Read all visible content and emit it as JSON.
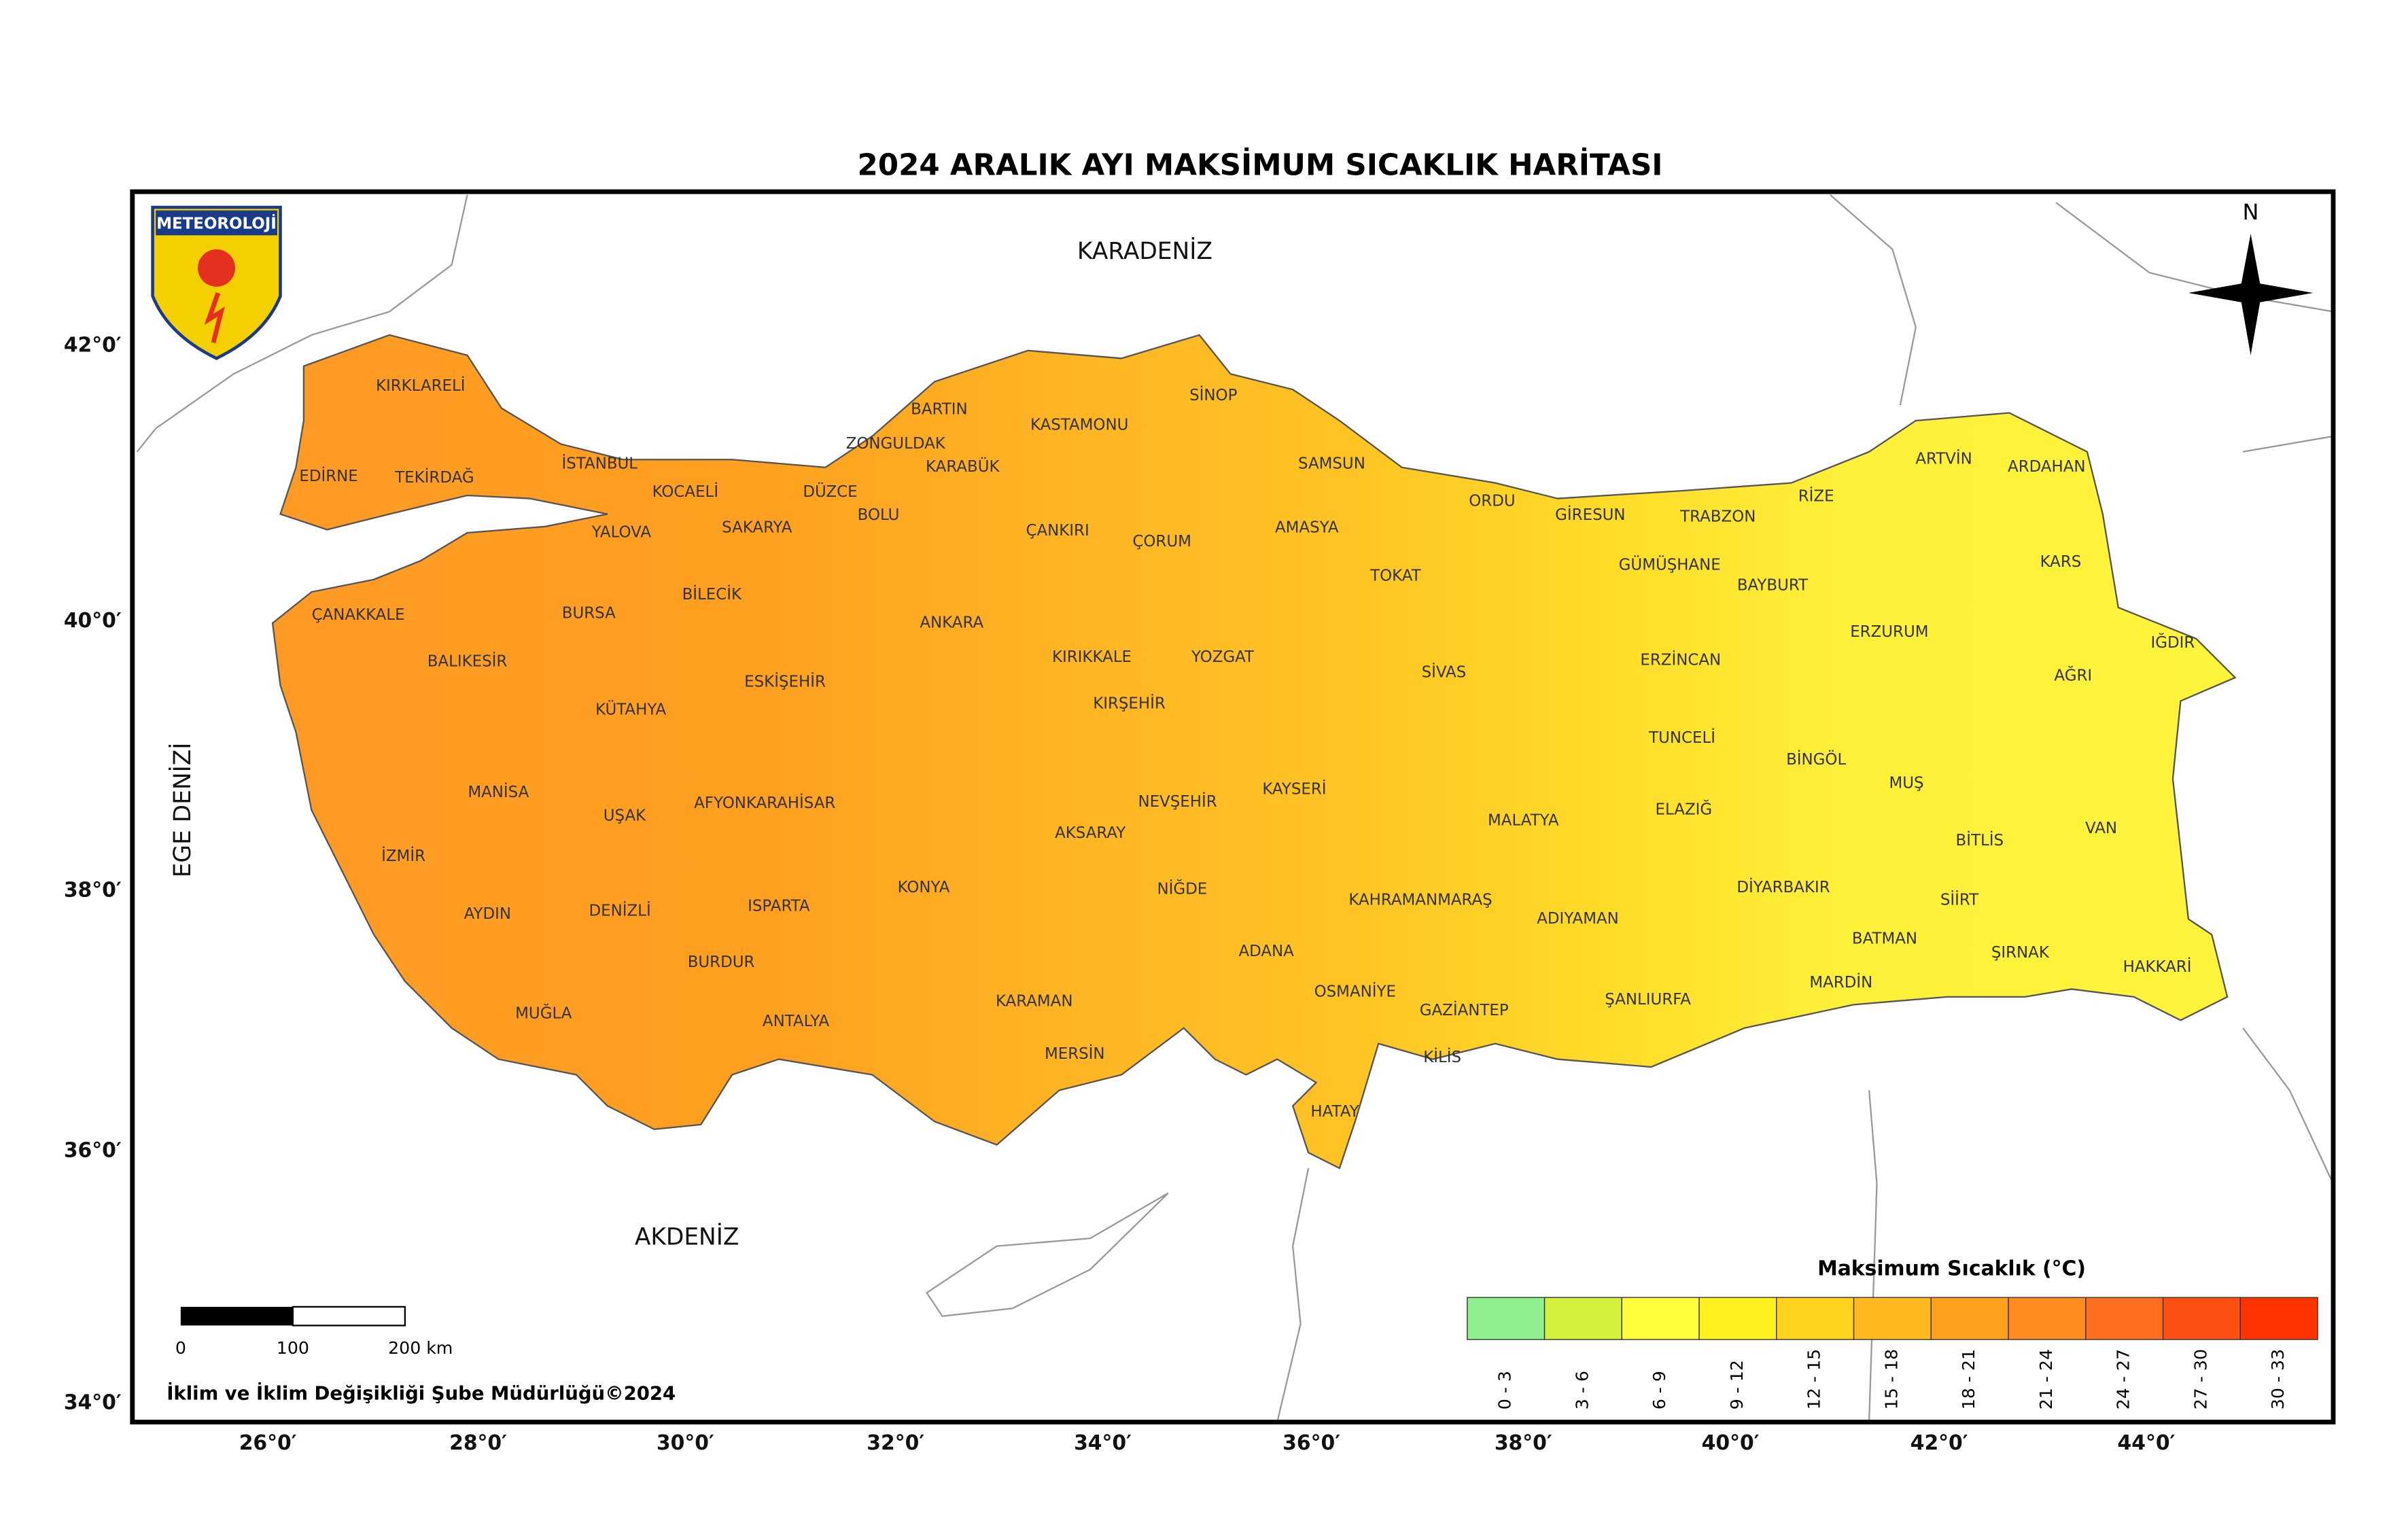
{
  "header": {
    "title": "2024 ARALIK AYI MAKSİMUM SICAKLIK HARİTASI"
  },
  "map": {
    "logo": "METEOROLOJİ",
    "north": "N",
    "seas": [
      "KARADENİZ",
      "AKDENİZ",
      "EGE DENİZİ"
    ],
    "provinces": [
      "KIRKLARELİ",
      "EDİRNE",
      "TEKİRDAĞ",
      "İSTANBUL",
      "KOCAELİ",
      "DÜZCE",
      "ZONGULDAK",
      "BARTIN",
      "KARABÜK",
      "BOLU",
      "SAKARYA",
      "YALOVA",
      "KASTAMONU",
      "SİNOP",
      "SAMSUN",
      "ORDU",
      "GİRESUN",
      "TRABZON",
      "RİZE",
      "ARTVİN",
      "ARDAHAN",
      "KARS",
      "IĞDIR",
      "AĞRI",
      "ERZURUM",
      "BAYBURT",
      "GÜMÜŞHANE",
      "ERZİNCAN",
      "AMASYA",
      "TOKAT",
      "ÇORUM",
      "ÇANKIRI",
      "ÇANAKKALE",
      "BALIKESİR",
      "BURSA",
      "BİLECİK",
      "KÜTAHYA",
      "ESKİŞEHİR",
      "ANKARA",
      "KIRIKKALE",
      "YOZGAT",
      "KIRŞEHİR",
      "SİVAS",
      "TUNCELİ",
      "BİNGÖL",
      "MUŞ",
      "VAN",
      "BİTLİS",
      "MANİSA",
      "İZMİR",
      "UŞAK",
      "AFYONKARAHİSAR",
      "AYDIN",
      "DENİZLİ",
      "ISPARTA",
      "BURDUR",
      "MUĞLA",
      "ANTALYA",
      "KONYA",
      "AKSARAY",
      "NEVŞEHİR",
      "NİĞDE",
      "KAYSERİ",
      "MALATYA",
      "ELAZIĞ",
      "DİYARBAKIR",
      "SİİRT",
      "BATMAN",
      "ŞIRNAK",
      "HAKKARİ",
      "MARDİN",
      "ŞANLIURFA",
      "ADIYAMAN",
      "KAHRAMANMARAŞ",
      "GAZİANTEP",
      "KİLİS",
      "OSMANİYE",
      "ADANA",
      "HATAY",
      "MERSİN",
      "KARAMAN"
    ],
    "lat_labels": [
      "42°0′",
      "40°0′",
      "38°0′",
      "36°0′",
      "34°0′"
    ],
    "lon_labels": [
      "26°0′",
      "28°0′",
      "30°0′",
      "32°0′",
      "34°0′",
      "36°0′",
      "38°0′",
      "40°0′",
      "42°0′",
      "44°0′"
    ]
  },
  "legend": {
    "title": "Maksimum Sıcaklık (°C)",
    "classes": [
      {
        "label": "0 - 3",
        "color": "#90f090"
      },
      {
        "label": "3 - 6",
        "color": "#d2f03c"
      },
      {
        "label": "6 - 9",
        "color": "#ffff3c"
      },
      {
        "label": "9 - 12",
        "color": "#fff01e"
      },
      {
        "label": "12 - 15",
        "color": "#ffd21e"
      },
      {
        "label": "15 - 18",
        "color": "#ffb91e"
      },
      {
        "label": "18 - 21",
        "color": "#ffa01e"
      },
      {
        "label": "21 - 24",
        "color": "#ff8c1e"
      },
      {
        "label": "24 - 27",
        "color": "#ff6e1e"
      },
      {
        "label": "27 - 30",
        "color": "#ff5014"
      },
      {
        "label": "30 - 33",
        "color": "#ff3200"
      }
    ]
  },
  "scale_bar": {
    "labels": [
      "0",
      "100",
      "200 km"
    ]
  },
  "credit": "İklim ve İklim Değişikliği Şube Müdürlüğü©2024"
}
